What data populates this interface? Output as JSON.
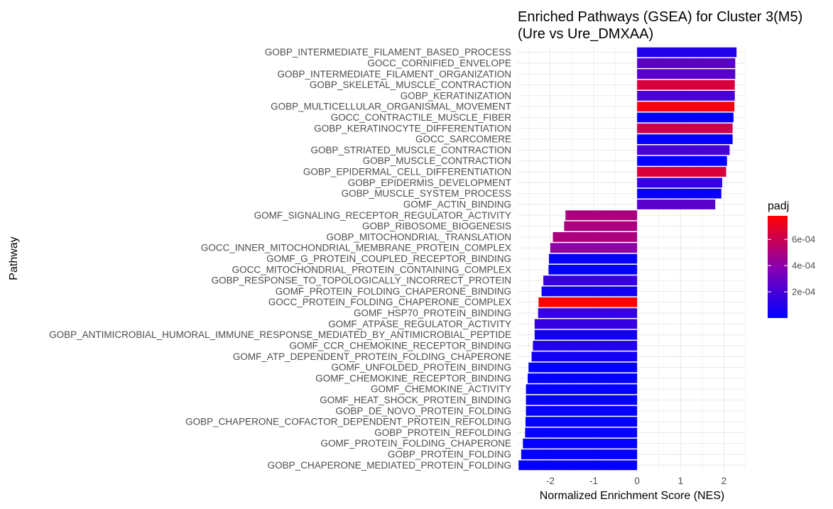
{
  "chart_data": {
    "type": "bar",
    "orientation": "horizontal",
    "title": [
      "Enriched Pathways (GSEA) for Cluster 3(M5)",
      "(Ure vs Ure_DMXAA)"
    ],
    "xlabel": "Normalized Enrichment Score (NES)",
    "ylabel": "Pathway",
    "xlim": [
      -2.75,
      2.5
    ],
    "xticks": [
      -2,
      -1,
      0,
      1,
      2
    ],
    "xtick_labels": [
      "-2",
      "-1",
      "0",
      "1",
      "2"
    ],
    "grid": true,
    "legend": {
      "title": "padj",
      "position": "right",
      "range": [
        0,
        0.00078
      ],
      "ticks": [
        0.0002,
        0.0004,
        0.0006
      ],
      "tick_labels": [
        "2e-04",
        "4e-04",
        "6e-04"
      ],
      "color_low": "#0000FF",
      "color_high": "#FF0000"
    },
    "categories": [
      "GOBP_INTERMEDIATE_FILAMENT_BASED_PROCESS",
      "GOCC_CORNIFIED_ENVELOPE",
      "GOBP_INTERMEDIATE_FILAMENT_ORGANIZATION",
      "GOBP_SKELETAL_MUSCLE_CONTRACTION",
      "GOBP_KERATINIZATION",
      "GOBP_MULTICELLULAR_ORGANISMAL_MOVEMENT",
      "GOCC_CONTRACTILE_MUSCLE_FIBER",
      "GOBP_KERATINOCYTE_DIFFERENTIATION",
      "GOCC_SARCOMERE",
      "GOBP_STRIATED_MUSCLE_CONTRACTION",
      "GOBP_MUSCLE_CONTRACTION",
      "GOBP_EPIDERMAL_CELL_DIFFERENTIATION",
      "GOBP_EPIDERMIS_DEVELOPMENT",
      "GOBP_MUSCLE_SYSTEM_PROCESS",
      "GOMF_ACTIN_BINDING",
      "GOMF_SIGNALING_RECEPTOR_REGULATOR_ACTIVITY",
      "GOBP_RIBOSOME_BIOGENESIS",
      "GOBP_MITOCHONDRIAL_TRANSLATION",
      "GOCC_INNER_MITOCHONDRIAL_MEMBRANE_PROTEIN_COMPLEX",
      "GOMF_G_PROTEIN_COUPLED_RECEPTOR_BINDING",
      "GOCC_MITOCHONDRIAL_PROTEIN_CONTAINING_COMPLEX",
      "GOBP_RESPONSE_TO_TOPOLOGICALLY_INCORRECT_PROTEIN",
      "GOMF_PROTEIN_FOLDING_CHAPERONE_BINDING",
      "GOCC_PROTEIN_FOLDING_CHAPERONE_COMPLEX",
      "GOMF_HSP70_PROTEIN_BINDING",
      "GOMF_ATPASE_REGULATOR_ACTIVITY",
      "GOBP_ANTIMICROBIAL_HUMORAL_IMMUNE_RESPONSE_MEDIATED_BY_ANTIMICROBIAL_PEPTIDE",
      "GOMF_CCR_CHEMOKINE_RECEPTOR_BINDING",
      "GOMF_ATP_DEPENDENT_PROTEIN_FOLDING_CHAPERONE",
      "GOMF_UNFOLDED_PROTEIN_BINDING",
      "GOMF_CHEMOKINE_RECEPTOR_BINDING",
      "GOMF_CHEMOKINE_ACTIVITY",
      "GOMF_HEAT_SHOCK_PROTEIN_BINDING",
      "GOBP_DE_NOVO_PROTEIN_FOLDING",
      "GOBP_CHAPERONE_COFACTOR_DEPENDENT_PROTEIN_REFOLDING",
      "GOBP_PROTEIN_REFOLDING",
      "GOMF_PROTEIN_FOLDING_CHAPERONE",
      "GOBP_PROTEIN_FOLDING",
      "GOBP_CHAPERONE_MEDIATED_PROTEIN_FOLDING"
    ],
    "values": [
      2.29,
      2.26,
      2.26,
      2.25,
      2.25,
      2.24,
      2.22,
      2.2,
      2.2,
      2.13,
      2.07,
      2.05,
      1.96,
      1.94,
      1.8,
      -1.65,
      -1.68,
      -1.94,
      -2.0,
      -2.03,
      -2.04,
      -2.16,
      -2.2,
      -2.27,
      -2.28,
      -2.36,
      -2.36,
      -2.4,
      -2.43,
      -2.5,
      -2.52,
      -2.56,
      -2.56,
      -2.56,
      -2.57,
      -2.58,
      -2.63,
      -2.67,
      -2.73
    ],
    "padj": [
      0.0001,
      0.00025,
      0.00025,
      0.00065,
      0.0002,
      0.00075,
      1e-05,
      0.0006,
      1e-05,
      0.0002,
      1e-05,
      0.00065,
      0.00015,
      2e-05,
      0.00025,
      0.0005,
      0.0005,
      0.0005,
      0.0004,
      1e-05,
      1e-05,
      0.00015,
      5e-05,
      0.00078,
      0.00015,
      0.00015,
      5e-05,
      0.0001,
      5e-05,
      1e-05,
      1e-05,
      1e-05,
      1e-05,
      1e-05,
      1e-05,
      1e-05,
      1e-05,
      1e-05,
      1e-05
    ]
  }
}
